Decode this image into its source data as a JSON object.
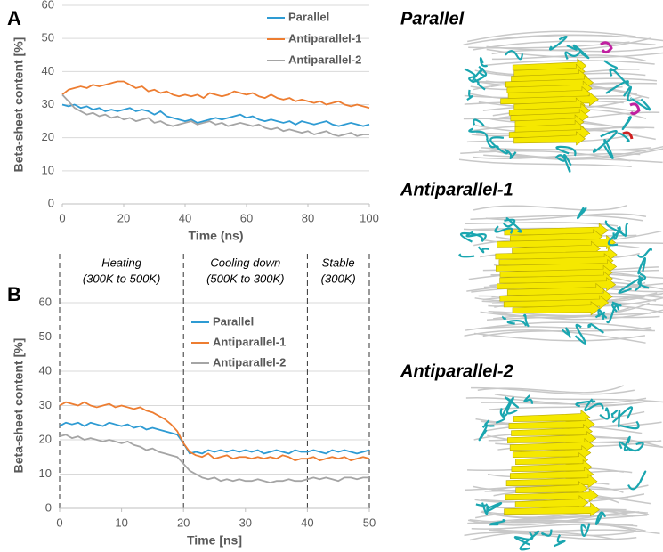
{
  "chart_data": [
    {
      "type": "line",
      "panel_label": "A",
      "x_label": "Time (ns)",
      "y_label": "Beta-sheet content [%]",
      "xlim": [
        0,
        100
      ],
      "xticks": [
        0,
        20,
        40,
        60,
        80,
        100
      ],
      "ylim": [
        0,
        60
      ],
      "yticks": [
        0,
        10,
        20,
        30,
        40,
        50,
        60
      ],
      "grid": true,
      "x": [
        0,
        2,
        4,
        6,
        8,
        10,
        12,
        14,
        16,
        18,
        20,
        22,
        24,
        26,
        28,
        30,
        32,
        34,
        36,
        38,
        40,
        42,
        44,
        46,
        48,
        50,
        52,
        54,
        56,
        58,
        60,
        62,
        64,
        66,
        68,
        70,
        72,
        74,
        76,
        78,
        80,
        82,
        84,
        86,
        88,
        90,
        92,
        94,
        96,
        98,
        100
      ],
      "series": [
        {
          "name": "Parallel",
          "color": "#2e9bd3",
          "values": [
            30,
            29.5,
            30,
            29,
            29.5,
            28.5,
            29,
            28,
            28.5,
            28,
            28.5,
            29,
            28,
            28.5,
            28,
            27,
            28,
            26.5,
            26,
            25.5,
            25,
            25.5,
            24.5,
            25,
            25.5,
            26,
            25.5,
            26,
            26.5,
            27,
            26,
            26.5,
            25.5,
            25,
            25.5,
            25,
            24.5,
            25,
            24,
            25,
            24.5,
            24,
            24.5,
            25,
            24,
            23.5,
            24,
            24.5,
            24,
            23.5,
            24
          ]
        },
        {
          "name": "Antiparallel-1",
          "color": "#ed7d31",
          "values": [
            33,
            34.5,
            35,
            35.5,
            35,
            36,
            35.5,
            36,
            36.5,
            37,
            37,
            36,
            35,
            35.5,
            34,
            34.5,
            33.5,
            34,
            33,
            32.5,
            33,
            32.5,
            33,
            32,
            33.5,
            33,
            32.5,
            33,
            34,
            33.5,
            33,
            33.5,
            32.5,
            32,
            33,
            32,
            31.5,
            32,
            31,
            31.5,
            31,
            30.5,
            31,
            30,
            30.5,
            31,
            30,
            29.5,
            30,
            29.5,
            29
          ]
        },
        {
          "name": "Antiparallel-2",
          "color": "#a5a5a5",
          "values": [
            33,
            31,
            29,
            28,
            27,
            27.5,
            26.5,
            27,
            26,
            26.5,
            25.5,
            26,
            25,
            25.5,
            26,
            24.5,
            25,
            24,
            23.5,
            24,
            24.5,
            25,
            24,
            24.5,
            25,
            24,
            24.5,
            23.5,
            24,
            24.5,
            24,
            23.5,
            24,
            23,
            22.5,
            23,
            22,
            22.5,
            22,
            21.5,
            22,
            21,
            21.5,
            22,
            21,
            20.5,
            21,
            21.5,
            20.5,
            21,
            21
          ]
        }
      ]
    },
    {
      "type": "line",
      "panel_label": "B",
      "x_label": "Time [ns]",
      "y_label": "Beta-sheet content [%]",
      "xlim": [
        0,
        50
      ],
      "xticks": [
        0,
        10,
        20,
        30,
        40,
        50
      ],
      "ylim": [
        0,
        60
      ],
      "yticks": [
        0,
        10,
        20,
        30,
        40,
        50,
        60
      ],
      "grid": true,
      "vlines": [
        0,
        20,
        40,
        50
      ],
      "phases": [
        {
          "name": "Heating",
          "range": "(300K to 500K)"
        },
        {
          "name": "Cooling down",
          "range": "(500K to 300K)"
        },
        {
          "name": "Stable",
          "range": "(300K)"
        }
      ],
      "x": [
        0,
        1,
        2,
        3,
        4,
        5,
        6,
        7,
        8,
        9,
        10,
        11,
        12,
        13,
        14,
        15,
        16,
        17,
        18,
        19,
        20,
        21,
        22,
        23,
        24,
        25,
        26,
        27,
        28,
        29,
        30,
        31,
        32,
        33,
        34,
        35,
        36,
        37,
        38,
        39,
        40,
        41,
        42,
        43,
        44,
        45,
        46,
        47,
        48,
        49,
        50
      ],
      "series": [
        {
          "name": "Parallel",
          "color": "#2e9bd3",
          "values": [
            24,
            25,
            24.5,
            25,
            24,
            25,
            24.5,
            24,
            25,
            24.5,
            24,
            24.5,
            23.5,
            24,
            23,
            23.5,
            23,
            22.5,
            22,
            21.5,
            19,
            16,
            16.5,
            16,
            17,
            16.5,
            17,
            16.5,
            17,
            16.5,
            17,
            16.5,
            17,
            16,
            16.5,
            17,
            16.5,
            16,
            17,
            16.5,
            16.5,
            17,
            16.5,
            16,
            17,
            16.5,
            17,
            16.5,
            16,
            16.5,
            17
          ]
        },
        {
          "name": "Antiparallel-1",
          "color": "#ed7d31",
          "values": [
            30,
            31,
            30.5,
            30,
            31,
            30,
            29.5,
            30,
            30.5,
            29.5,
            30,
            29.5,
            29,
            29.5,
            28.5,
            28,
            27,
            26,
            24.5,
            22.5,
            19,
            16.5,
            15.5,
            15,
            16,
            14.5,
            15,
            15.5,
            14.5,
            15,
            15,
            14.5,
            15,
            14.5,
            15,
            14.5,
            15.5,
            15,
            14,
            14.5,
            14.5,
            15,
            14,
            14.5,
            15,
            14.5,
            15,
            14,
            14.5,
            15,
            14.5
          ]
        },
        {
          "name": "Antiparallel-2",
          "color": "#a5a5a5",
          "values": [
            21,
            21.5,
            20.5,
            21,
            20,
            20.5,
            20,
            19.5,
            20,
            19.5,
            19,
            19.5,
            18.5,
            18,
            17,
            17.5,
            16.5,
            16,
            15.5,
            15,
            13,
            11,
            10,
            9,
            8.5,
            9,
            8,
            8.5,
            8,
            8.5,
            8,
            8,
            8.5,
            8,
            7.5,
            8,
            8,
            8.5,
            8,
            8,
            8.5,
            9,
            8.5,
            9,
            8.5,
            8,
            9,
            9,
            8.5,
            9,
            9
          ]
        }
      ]
    }
  ],
  "structure_labels": [
    "Parallel",
    "Antiparallel-1",
    "Antiparallel-2"
  ]
}
